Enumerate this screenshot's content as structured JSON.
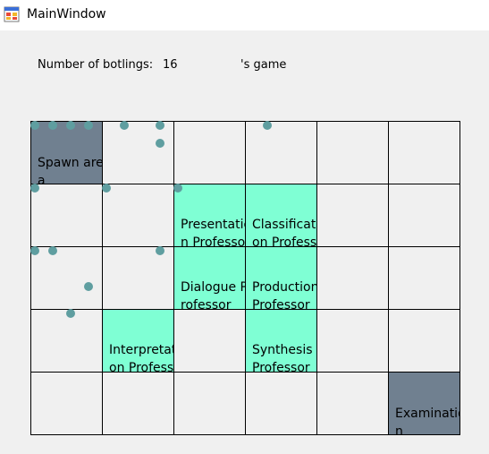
{
  "window": {
    "title": "MainWindow"
  },
  "header": {
    "botlings_label": "Number of botlings:",
    "botlings_count": "16",
    "game_label": "'s game"
  },
  "colors": {
    "area_gray": "#708090",
    "professor_aqua": "#7fffd4",
    "botling_teal": "#5f9ea0"
  },
  "board": {
    "columns": 6,
    "rows": 5,
    "cells": [
      {
        "row": 0,
        "col": 0,
        "type": "spawn",
        "label": "Spawn area"
      },
      {
        "row": 1,
        "col": 2,
        "type": "professor",
        "label": "Presentation Professor"
      },
      {
        "row": 1,
        "col": 3,
        "type": "professor",
        "label": "Classification Professor"
      },
      {
        "row": 2,
        "col": 2,
        "type": "professor",
        "label": "Dialogue Professor"
      },
      {
        "row": 2,
        "col": 3,
        "type": "professor",
        "label": "Production Professor"
      },
      {
        "row": 3,
        "col": 1,
        "type": "professor",
        "label": "Interpretation Professor"
      },
      {
        "row": 3,
        "col": 3,
        "type": "professor",
        "label": "Synthesis Professor"
      },
      {
        "row": 4,
        "col": 5,
        "type": "exam",
        "label": "Examination"
      }
    ]
  }
}
